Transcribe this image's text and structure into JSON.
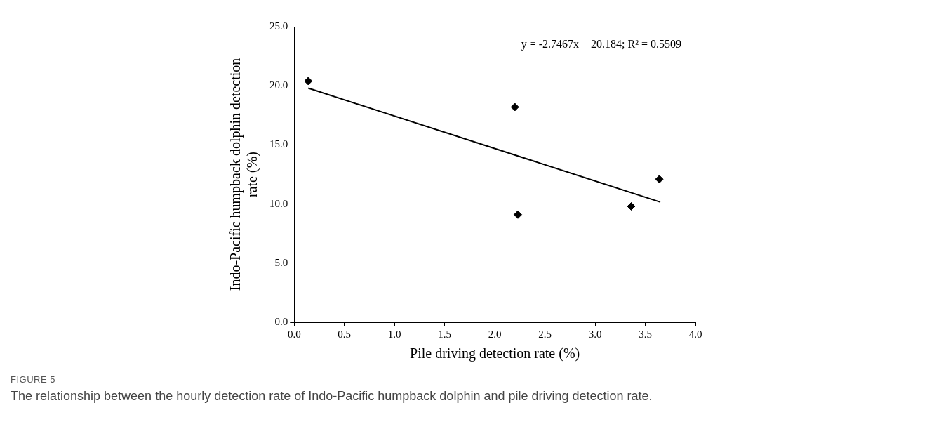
{
  "chart_data": {
    "type": "scatter",
    "xlabel": "Pile driving detection rate (%)",
    "ylabel": "Indo-Pacific humpback dolphin detection rate (%)",
    "series": [
      {
        "marker": "diamond",
        "color": "#000000",
        "x": [
          0.14,
          2.2,
          2.23,
          3.36,
          3.64
        ],
        "values": [
          20.4,
          18.2,
          9.1,
          9.8,
          12.1
        ]
      },
      {
        "type": "line",
        "marker": "none",
        "color": "#000000",
        "x": [
          0.14,
          3.65
        ],
        "values": [
          19.8,
          10.16
        ]
      }
    ],
    "grid": false,
    "legend": false,
    "xlim": [
      0,
      4
    ],
    "xticks": [
      {
        "value": 0,
        "label": "0.0"
      },
      0.5,
      {
        "value": 1,
        "label": "1.0"
      },
      1.5,
      {
        "value": 2,
        "label": "2.0"
      },
      2.5,
      {
        "value": 3,
        "label": "3.0"
      },
      3.5,
      {
        "value": 4,
        "label": "4.0"
      }
    ],
    "ylim": [
      0,
      25
    ],
    "yticks": [
      {
        "value": 0,
        "label": "0.0"
      },
      {
        "value": 5,
        "label": "5.0"
      },
      {
        "value": 10,
        "label": "10.0"
      },
      {
        "value": 15,
        "label": "15.0"
      },
      {
        "value": 20,
        "label": "20.0"
      },
      {
        "value": 25,
        "label": "25.0"
      }
    ],
    "annotations": [
      "y = -2.7467x + 20.184; R² = 0.5509",
      "FIGURE 5",
      "The relationship between the hourly detection rate of Indo-Pacific humpback dolphin and pile driving detection rate."
    ]
  }
}
